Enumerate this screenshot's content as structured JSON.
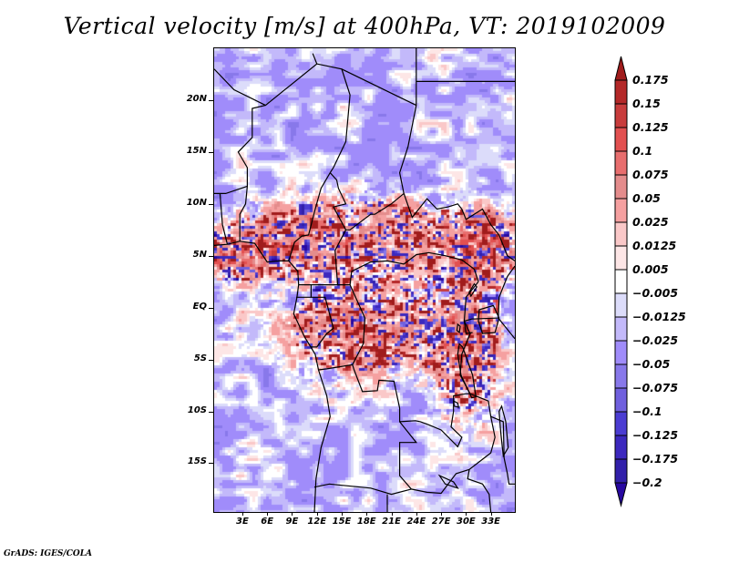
{
  "chart_data": {
    "type": "heatmap",
    "title": "Vertical velocity [m/s] at 400hPa, VT: 2019102009",
    "variable": "Vertical velocity",
    "units": "m/s",
    "level": "400hPa",
    "valid_time": "2019102009",
    "xlabel": "",
    "ylabel": "",
    "x_range_deg": [
      -0.4,
      35.9
    ],
    "y_range_deg": [
      -19.7,
      25.0
    ],
    "x_ticks": [
      {
        "value": 3,
        "label": "3E"
      },
      {
        "value": 6,
        "label": "6E"
      },
      {
        "value": 9,
        "label": "9E"
      },
      {
        "value": 12,
        "label": "12E"
      },
      {
        "value": 15,
        "label": "15E"
      },
      {
        "value": 18,
        "label": "18E"
      },
      {
        "value": 21,
        "label": "21E"
      },
      {
        "value": 24,
        "label": "24E"
      },
      {
        "value": 27,
        "label": "27E"
      },
      {
        "value": 30,
        "label": "30E"
      },
      {
        "value": 33,
        "label": "33E"
      }
    ],
    "y_ticks": [
      {
        "value": 20,
        "label": "20N"
      },
      {
        "value": 15,
        "label": "15N"
      },
      {
        "value": 10,
        "label": "10N"
      },
      {
        "value": 5,
        "label": "5N"
      },
      {
        "value": 0,
        "label": "EQ"
      },
      {
        "value": -5,
        "label": "5S"
      },
      {
        "value": -10,
        "label": "10S"
      },
      {
        "value": -15,
        "label": "15S"
      }
    ],
    "colorbar": {
      "orientation": "vertical",
      "placement": "right",
      "extend": "both",
      "levels": [
        0.175,
        0.15,
        0.125,
        0.1,
        0.075,
        0.05,
        0.025,
        0.0125,
        0.005,
        -0.005,
        -0.0125,
        -0.025,
        -0.05,
        -0.075,
        -0.1,
        -0.125,
        -0.175,
        -0.2
      ],
      "labels": [
        "0.175",
        "0.15",
        "0.125",
        "0.1",
        "0.075",
        "0.05",
        "0.025",
        "0.0125",
        "0.005",
        "−0.005",
        "−0.0125",
        "−0.025",
        "−0.05",
        "−0.075",
        "−0.1",
        "−0.125",
        "−0.175",
        "−0.2"
      ],
      "colors_top_to_bottom": [
        "#a01c1c",
        "#b42828",
        "#c83c3c",
        "#e25050",
        "#e86e6e",
        "#e48c8c",
        "#f5a0a0",
        "#fac8c8",
        "#fde6e6",
        "#ffffff",
        "#dcdcfa",
        "#c3b9fa",
        "#a08cfa",
        "#8878ea",
        "#7060de",
        "#4b3cd2",
        "#3c28be",
        "#3220aa",
        "#2808a0"
      ]
    },
    "field_description": "Mixed noisy pattern; strong upward (red) cells along 5N-10N belt, Congo basin near EQ to 5S, and East African lakes region (27E-33E, 0-10S); broad weak sinking (blue) over Sahara/Niger and Angola/Zambia."
  },
  "footer": {
    "credit": "GrADS: IGES/COLA"
  }
}
